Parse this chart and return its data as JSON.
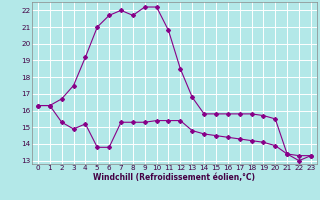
{
  "xlabel": "Windchill (Refroidissement éolien,°C)",
  "background_color": "#b3e8e8",
  "line_color": "#880088",
  "grid_color": "#ffffff",
  "ylim": [
    12.8,
    22.5
  ],
  "xlim": [
    -0.5,
    23.5
  ],
  "yticks": [
    13,
    14,
    15,
    16,
    17,
    18,
    19,
    20,
    21,
    22
  ],
  "xticks": [
    0,
    1,
    2,
    3,
    4,
    5,
    6,
    7,
    8,
    9,
    10,
    11,
    12,
    13,
    14,
    15,
    16,
    17,
    18,
    19,
    20,
    21,
    22,
    23
  ],
  "series1_x": [
    0,
    1,
    2,
    3,
    4,
    5,
    6,
    7,
    8,
    9,
    10,
    11,
    12,
    13,
    14,
    15,
    16,
    17,
    18,
    19,
    20,
    21,
    22,
    23
  ],
  "series1_y": [
    16.3,
    16.3,
    16.7,
    17.5,
    19.2,
    21.0,
    21.7,
    22.0,
    21.7,
    22.2,
    22.2,
    20.8,
    18.5,
    16.8,
    15.8,
    15.8,
    15.8,
    15.8,
    15.8,
    15.7,
    15.5,
    13.4,
    13.3,
    13.3
  ],
  "series2_x": [
    0,
    1,
    2,
    3,
    4,
    5,
    6,
    7,
    8,
    9,
    10,
    11,
    12,
    13,
    14,
    15,
    16,
    17,
    18,
    19,
    20,
    21,
    22,
    23
  ],
  "series2_y": [
    16.3,
    16.3,
    15.3,
    14.9,
    15.2,
    13.8,
    13.8,
    15.3,
    15.3,
    15.3,
    15.4,
    15.4,
    15.4,
    14.8,
    14.6,
    14.5,
    14.4,
    14.3,
    14.2,
    14.1,
    13.9,
    13.4,
    13.0,
    13.3
  ],
  "tick_fontsize": 5.2,
  "xlabel_fontsize": 5.5
}
